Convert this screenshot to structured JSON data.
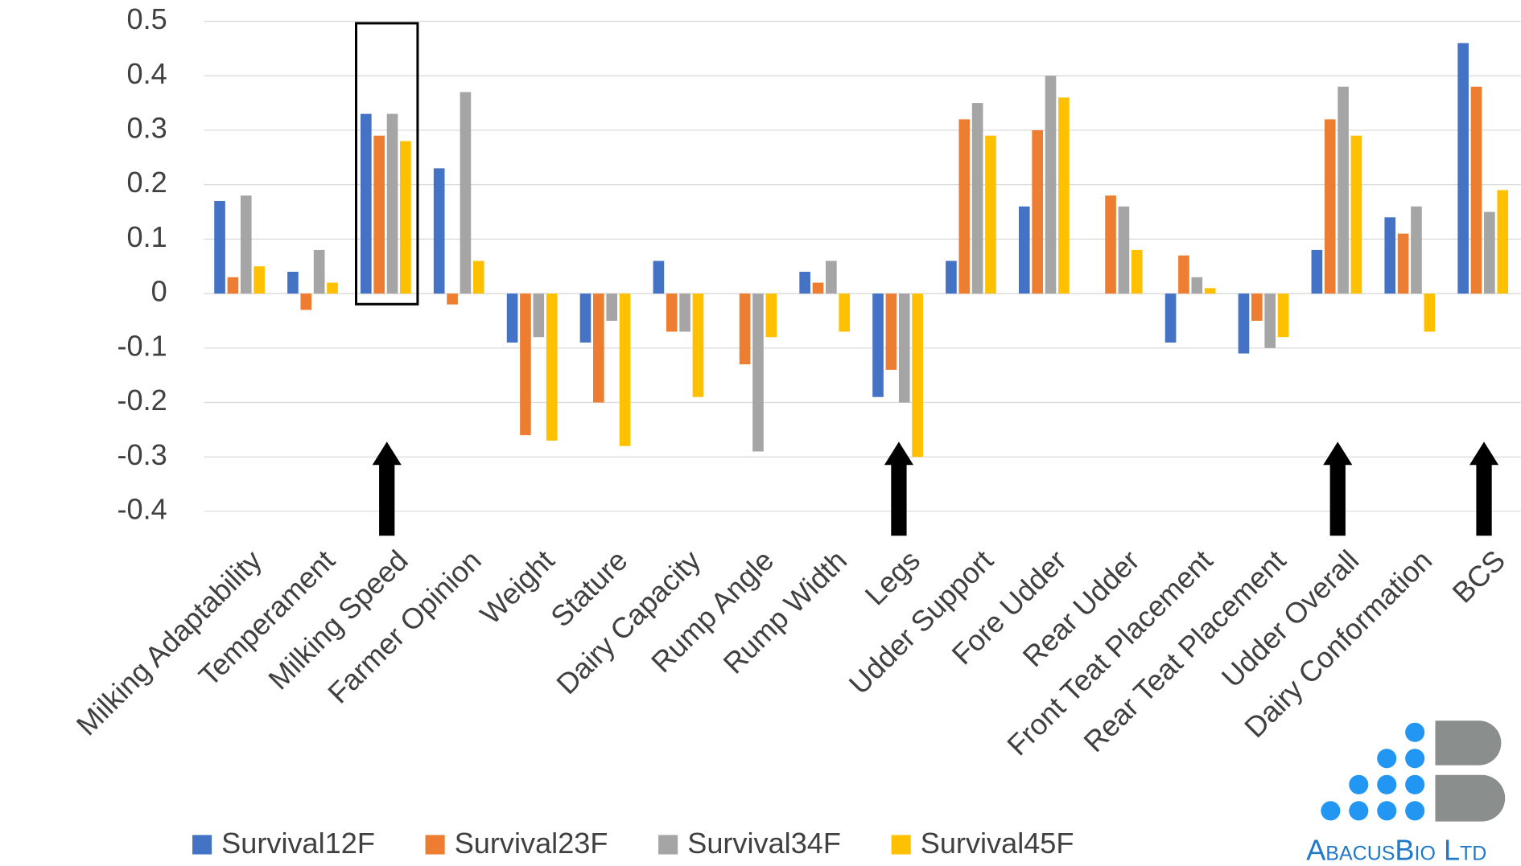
{
  "chart_data": {
    "type": "bar",
    "categories": [
      "Milking Adaptability",
      "Temperament",
      "Milking Speed",
      "Farmer Opinion",
      "Weight",
      "Stature",
      "Dairy Capacity",
      "Rump Angle",
      "Rump Width",
      "Legs",
      "Udder Support",
      "Fore Udder",
      "Rear Udder",
      "Front Teat Placement",
      "Rear Teat Placement",
      "Udder Overall",
      "Dairy Conformation",
      "BCS"
    ],
    "series": [
      {
        "name": "Survival12F",
        "color": "#4472c4",
        "values": [
          0.17,
          0.04,
          0.33,
          0.23,
          -0.09,
          -0.09,
          0.06,
          0,
          0.04,
          -0.19,
          0.06,
          0.16,
          0,
          -0.09,
          -0.11,
          0.08,
          0.14,
          0.46
        ]
      },
      {
        "name": "Survival23F",
        "color": "#ed7d31",
        "values": [
          0.03,
          -0.03,
          0.29,
          -0.02,
          -0.26,
          -0.2,
          -0.07,
          -0.13,
          0.02,
          -0.14,
          0.32,
          0.3,
          0.18,
          0.07,
          -0.05,
          0.32,
          0.11,
          0.38
        ]
      },
      {
        "name": "Survival34F",
        "color": "#a5a5a5",
        "values": [
          0.18,
          0.08,
          0.33,
          0.37,
          -0.08,
          -0.05,
          -0.07,
          -0.29,
          0.06,
          -0.2,
          0.35,
          0.4,
          0.16,
          0.03,
          -0.1,
          0.38,
          0.16,
          0.15
        ]
      },
      {
        "name": "Survival45F",
        "color": "#ffc000",
        "values": [
          0.05,
          0.02,
          0.28,
          0.06,
          -0.27,
          -0.28,
          -0.19,
          -0.08,
          -0.07,
          -0.3,
          0.29,
          0.36,
          0.08,
          0.01,
          -0.08,
          0.29,
          -0.07,
          0.19
        ]
      }
    ],
    "ylim": [
      -0.45,
      0.5
    ],
    "yticks": [
      -0.4,
      -0.3,
      -0.2,
      -0.1,
      0,
      0.1,
      0.2,
      0.3,
      0.4,
      0.5
    ],
    "grid": true,
    "legend": "bottom",
    "logo_text": "AbacusBio Ltd"
  }
}
